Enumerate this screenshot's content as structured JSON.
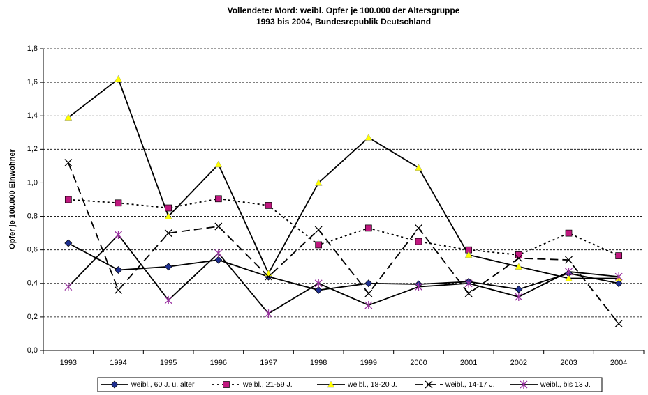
{
  "chart_data": {
    "type": "line",
    "title": "Vollendeter Mord: weibl. Opfer je 100.000 der Altersgruppe",
    "subtitle": "1993 bis 2004, Bundesrepublik Deutschland",
    "y_label": "Opfer je 100.000 Einwohner",
    "categories": [
      "1993",
      "1994",
      "1995",
      "1996",
      "1997",
      "1998",
      "1999",
      "2000",
      "2001",
      "2002",
      "2003",
      "2004"
    ],
    "ylim": [
      0,
      1.8
    ],
    "yticks": [
      {
        "value": 0,
        "label": "0,0"
      },
      {
        "value": 0.2,
        "label": "0,2"
      },
      {
        "value": 0.4,
        "label": "0,4"
      },
      {
        "value": 0.6,
        "label": "0,6"
      },
      {
        "value": 0.8,
        "label": "0,8"
      },
      {
        "value": 1.0,
        "label": "1,0"
      },
      {
        "value": 1.2,
        "label": "1,2"
      },
      {
        "value": 1.4,
        "label": "1,4"
      },
      {
        "value": 1.6,
        "label": "1,6"
      },
      {
        "value": 1.8,
        "label": "1,8"
      }
    ],
    "grid": true,
    "legend": "bottom",
    "series": [
      {
        "name": "weibl., 60 J. u. älter",
        "color": "#1f2f8f",
        "marker": "diamond",
        "dash": "solid",
        "values": [
          0.64,
          0.48,
          0.5,
          0.54,
          0.44,
          0.36,
          0.4,
          0.395,
          0.41,
          0.365,
          0.46,
          0.4
        ]
      },
      {
        "name": "weibl., 21-59 J.",
        "color": "#c0187f",
        "marker": "square",
        "dash": "dotted",
        "values": [
          0.9,
          0.88,
          0.85,
          0.905,
          0.865,
          0.63,
          0.73,
          0.65,
          0.6,
          0.57,
          0.7,
          0.565
        ]
      },
      {
        "name": "weibl., 18-20 J.",
        "color": "#ffff00",
        "marker": "triangle",
        "dash": "solid",
        "values": [
          1.39,
          1.62,
          0.8,
          1.11,
          0.46,
          1.0,
          1.27,
          1.09,
          0.57,
          0.5,
          0.43,
          0.43
        ]
      },
      {
        "name": "weibl., 14-17 J.",
        "color": "#000000",
        "marker": "x",
        "dash": "dashed",
        "values": [
          1.12,
          0.36,
          0.7,
          0.74,
          0.44,
          0.72,
          0.34,
          0.73,
          0.34,
          0.55,
          0.54,
          0.16
        ]
      },
      {
        "name": "weibl., bis 13 J.",
        "color": "#9932a0",
        "marker": "star",
        "dash": "solid",
        "values": [
          0.38,
          0.69,
          0.3,
          0.58,
          0.22,
          0.4,
          0.27,
          0.38,
          0.4,
          0.32,
          0.47,
          0.44
        ]
      }
    ]
  }
}
